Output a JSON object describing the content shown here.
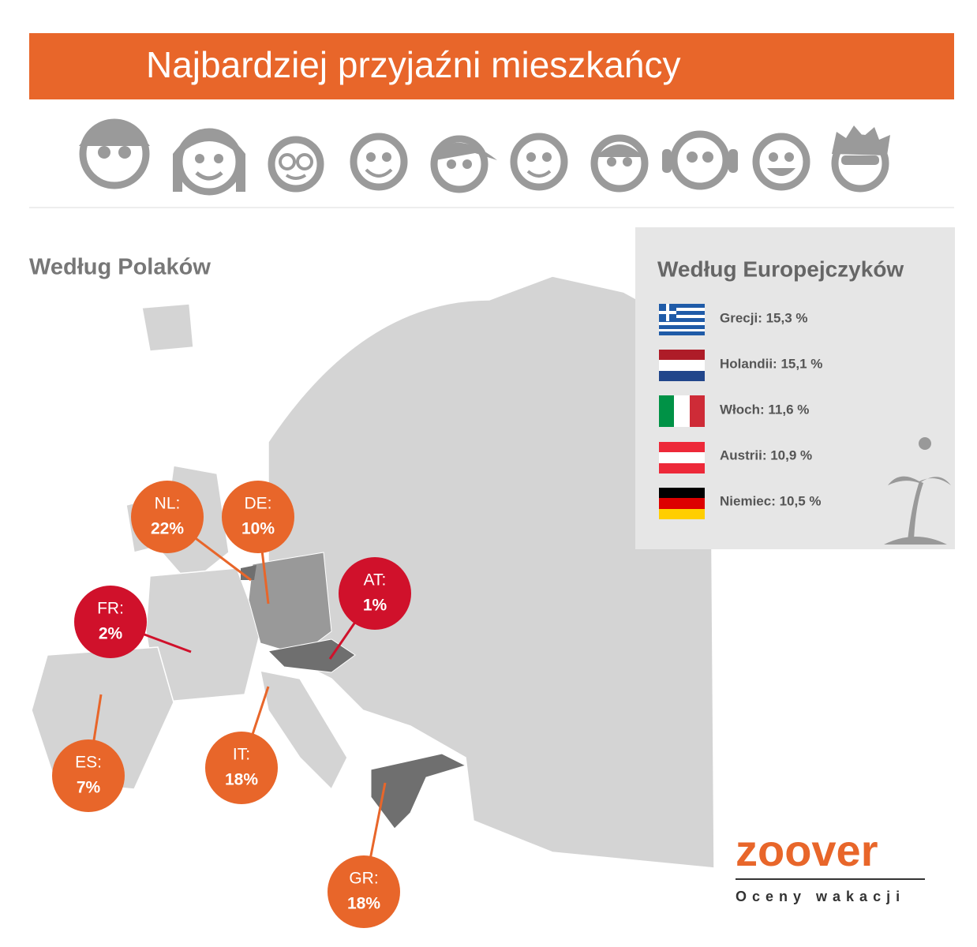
{
  "title": "Najbardziej przyjaźni mieszkańcy",
  "left_heading": "Według Polaków",
  "bubbles": [
    {
      "code": "NL:",
      "value": "22%"
    },
    {
      "code": "DE:",
      "value": "10%"
    },
    {
      "code": "AT:",
      "value": "1%"
    },
    {
      "code": "FR:",
      "value": "2%"
    },
    {
      "code": "ES:",
      "value": "7%"
    },
    {
      "code": "IT:",
      "value": "18%"
    },
    {
      "code": "GR:",
      "value": "18%"
    }
  ],
  "panel": {
    "heading": "Według Europejczyków",
    "items": [
      "Grecji: 15,3 %",
      "Holandii: 15,1 %",
      "Włoch: 11,6 %",
      "Austrii: 10,9 %",
      "Niemiec: 10,5 %"
    ]
  },
  "logo": {
    "name": "zoover",
    "tagline": "Oceny wakacji"
  }
}
